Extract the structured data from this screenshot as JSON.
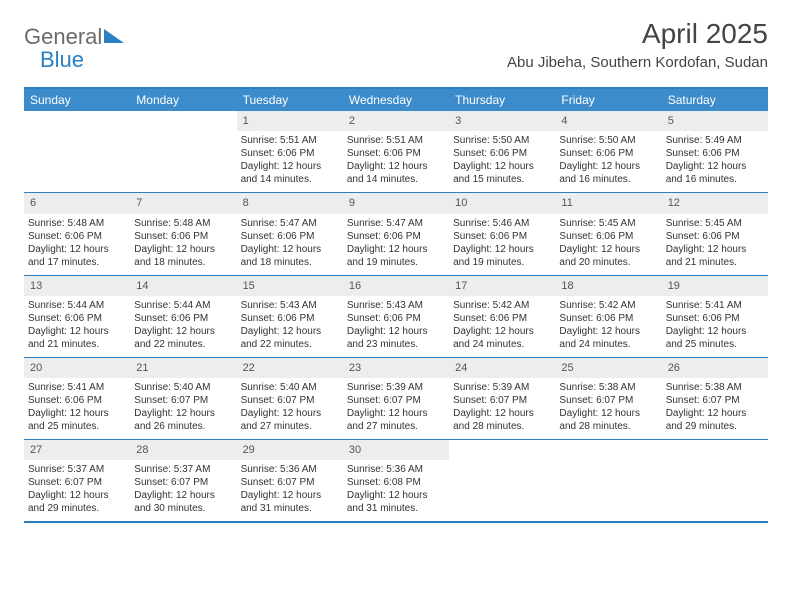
{
  "logo": {
    "text1": "General",
    "text2": "Blue"
  },
  "title": "April 2025",
  "location": "Abu Jibeha, Southern Kordofan, Sudan",
  "colors": {
    "brand_blue": "#3c8bca",
    "rule_blue": "#2b7fc3",
    "daynum_bg": "#eceded",
    "text_gray": "#6b6b6b"
  },
  "daysOfWeek": [
    "Sunday",
    "Monday",
    "Tuesday",
    "Wednesday",
    "Thursday",
    "Friday",
    "Saturday"
  ],
  "weeks": [
    [
      null,
      null,
      {
        "n": "1",
        "sunrise": "5:51 AM",
        "sunset": "6:06 PM",
        "daylight": "12 hours and 14 minutes."
      },
      {
        "n": "2",
        "sunrise": "5:51 AM",
        "sunset": "6:06 PM",
        "daylight": "12 hours and 14 minutes."
      },
      {
        "n": "3",
        "sunrise": "5:50 AM",
        "sunset": "6:06 PM",
        "daylight": "12 hours and 15 minutes."
      },
      {
        "n": "4",
        "sunrise": "5:50 AM",
        "sunset": "6:06 PM",
        "daylight": "12 hours and 16 minutes."
      },
      {
        "n": "5",
        "sunrise": "5:49 AM",
        "sunset": "6:06 PM",
        "daylight": "12 hours and 16 minutes."
      }
    ],
    [
      {
        "n": "6",
        "sunrise": "5:48 AM",
        "sunset": "6:06 PM",
        "daylight": "12 hours and 17 minutes."
      },
      {
        "n": "7",
        "sunrise": "5:48 AM",
        "sunset": "6:06 PM",
        "daylight": "12 hours and 18 minutes."
      },
      {
        "n": "8",
        "sunrise": "5:47 AM",
        "sunset": "6:06 PM",
        "daylight": "12 hours and 18 minutes."
      },
      {
        "n": "9",
        "sunrise": "5:47 AM",
        "sunset": "6:06 PM",
        "daylight": "12 hours and 19 minutes."
      },
      {
        "n": "10",
        "sunrise": "5:46 AM",
        "sunset": "6:06 PM",
        "daylight": "12 hours and 19 minutes."
      },
      {
        "n": "11",
        "sunrise": "5:45 AM",
        "sunset": "6:06 PM",
        "daylight": "12 hours and 20 minutes."
      },
      {
        "n": "12",
        "sunrise": "5:45 AM",
        "sunset": "6:06 PM",
        "daylight": "12 hours and 21 minutes."
      }
    ],
    [
      {
        "n": "13",
        "sunrise": "5:44 AM",
        "sunset": "6:06 PM",
        "daylight": "12 hours and 21 minutes."
      },
      {
        "n": "14",
        "sunrise": "5:44 AM",
        "sunset": "6:06 PM",
        "daylight": "12 hours and 22 minutes."
      },
      {
        "n": "15",
        "sunrise": "5:43 AM",
        "sunset": "6:06 PM",
        "daylight": "12 hours and 22 minutes."
      },
      {
        "n": "16",
        "sunrise": "5:43 AM",
        "sunset": "6:06 PM",
        "daylight": "12 hours and 23 minutes."
      },
      {
        "n": "17",
        "sunrise": "5:42 AM",
        "sunset": "6:06 PM",
        "daylight": "12 hours and 24 minutes."
      },
      {
        "n": "18",
        "sunrise": "5:42 AM",
        "sunset": "6:06 PM",
        "daylight": "12 hours and 24 minutes."
      },
      {
        "n": "19",
        "sunrise": "5:41 AM",
        "sunset": "6:06 PM",
        "daylight": "12 hours and 25 minutes."
      }
    ],
    [
      {
        "n": "20",
        "sunrise": "5:41 AM",
        "sunset": "6:06 PM",
        "daylight": "12 hours and 25 minutes."
      },
      {
        "n": "21",
        "sunrise": "5:40 AM",
        "sunset": "6:07 PM",
        "daylight": "12 hours and 26 minutes."
      },
      {
        "n": "22",
        "sunrise": "5:40 AM",
        "sunset": "6:07 PM",
        "daylight": "12 hours and 27 minutes."
      },
      {
        "n": "23",
        "sunrise": "5:39 AM",
        "sunset": "6:07 PM",
        "daylight": "12 hours and 27 minutes."
      },
      {
        "n": "24",
        "sunrise": "5:39 AM",
        "sunset": "6:07 PM",
        "daylight": "12 hours and 28 minutes."
      },
      {
        "n": "25",
        "sunrise": "5:38 AM",
        "sunset": "6:07 PM",
        "daylight": "12 hours and 28 minutes."
      },
      {
        "n": "26",
        "sunrise": "5:38 AM",
        "sunset": "6:07 PM",
        "daylight": "12 hours and 29 minutes."
      }
    ],
    [
      {
        "n": "27",
        "sunrise": "5:37 AM",
        "sunset": "6:07 PM",
        "daylight": "12 hours and 29 minutes."
      },
      {
        "n": "28",
        "sunrise": "5:37 AM",
        "sunset": "6:07 PM",
        "daylight": "12 hours and 30 minutes."
      },
      {
        "n": "29",
        "sunrise": "5:36 AM",
        "sunset": "6:07 PM",
        "daylight": "12 hours and 31 minutes."
      },
      {
        "n": "30",
        "sunrise": "5:36 AM",
        "sunset": "6:08 PM",
        "daylight": "12 hours and 31 minutes."
      },
      null,
      null,
      null
    ]
  ],
  "labels": {
    "sunrise_prefix": "Sunrise: ",
    "sunset_prefix": "Sunset: ",
    "daylight_prefix": "Daylight: "
  }
}
